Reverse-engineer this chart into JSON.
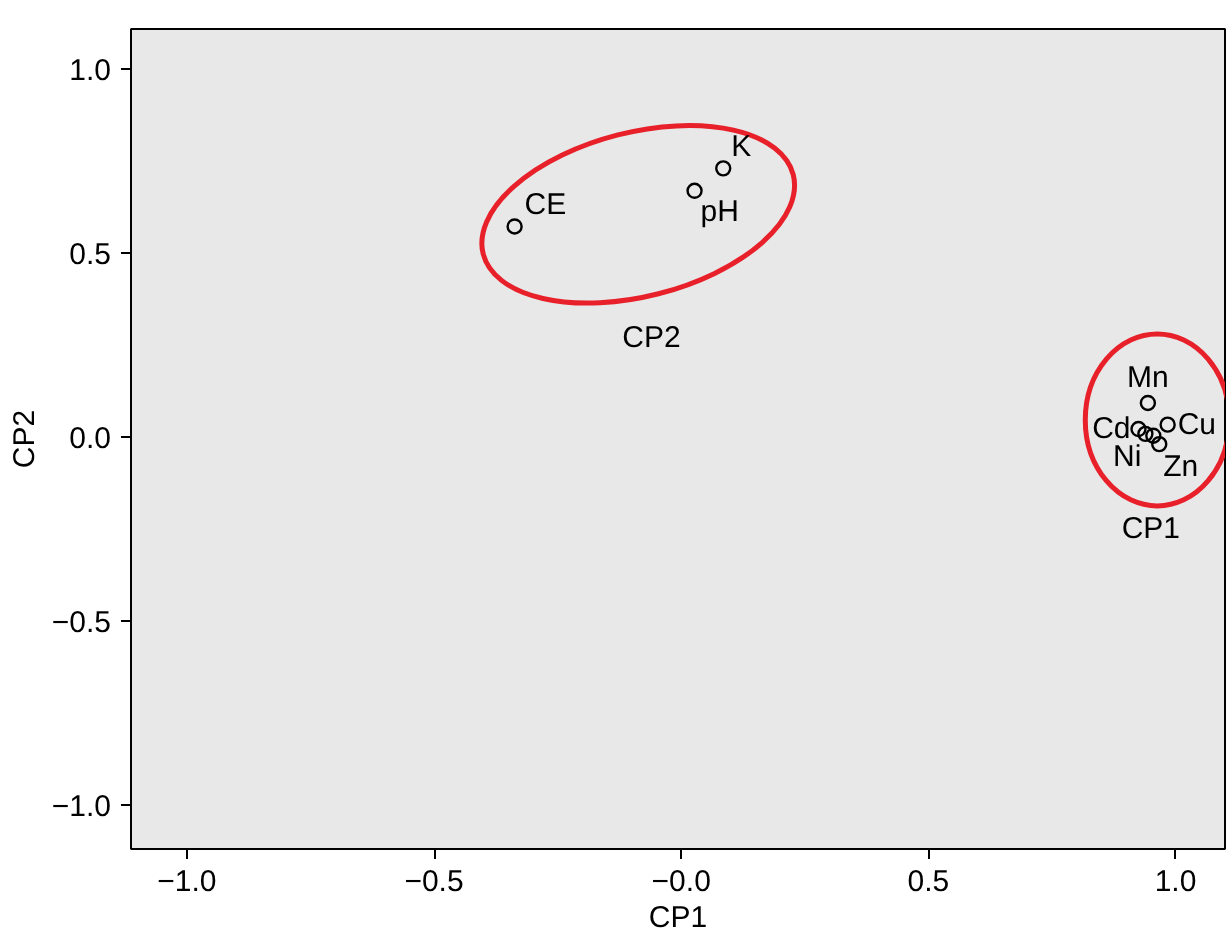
{
  "chart_data": {
    "type": "scatter",
    "xlabel": "CP1",
    "ylabel": "CP2",
    "x": [
      -0.337,
      0.027,
      0.085,
      0.944,
      0.925,
      0.939,
      0.955,
      0.984,
      0.967
    ],
    "series": [
      {
        "color": "#000000",
        "values": [
          0.573,
          0.67,
          0.731,
          0.093,
          0.022,
          0.009,
          0.004,
          0.034,
          -0.019
        ]
      }
    ],
    "marker": "circle",
    "grid": false,
    "xlim": [
      -1.113,
      1.1
    ],
    "ylim": [
      -1.12,
      1.11
    ],
    "xticks": [
      {
        "value": -1.0,
        "label": "−1.0"
      },
      {
        "value": -0.5,
        "label": "−0.5"
      },
      {
        "value": 0.0,
        "label": "−0.0"
      },
      {
        "value": 0.5,
        "label": "0.5"
      },
      {
        "value": 1.0,
        "label": "1.0"
      }
    ],
    "yticks": [
      {
        "value": -1.0,
        "label": "−1.0"
      },
      {
        "value": -0.5,
        "label": "−0.5"
      },
      {
        "value": 0.0,
        "label": "0.0"
      },
      {
        "value": 0.5,
        "label": "0.5"
      },
      {
        "value": 1.0,
        "label": "1.0"
      }
    ],
    "annotations": [
      {
        "text": "CE",
        "x": -0.337,
        "y": 0.573
      },
      {
        "text": "pH",
        "x": 0.027,
        "y": 0.67
      },
      {
        "text": "K",
        "x": 0.085,
        "y": 0.731
      },
      {
        "text": "Mn",
        "x": 0.944,
        "y": 0.093
      },
      {
        "text": "Cd",
        "x": 0.925,
        "y": 0.022
      },
      {
        "text": "Ni",
        "x": 0.939,
        "y": 0.009
      },
      {
        "text": "Cu",
        "x": 0.984,
        "y": 0.034
      },
      {
        "text": "Zn",
        "x": 0.967,
        "y": -0.019
      },
      "CP2",
      "CP1"
    ]
  }
}
